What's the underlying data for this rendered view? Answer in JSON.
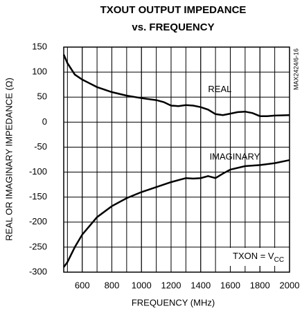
{
  "chart_data": {
    "type": "line",
    "title": [
      "TXOUT OUTPUT IMPEDANCE",
      "vs. FREQUENCY"
    ],
    "xlabel": "FREQUENCY (MHz)",
    "ylabel": "REAL OR IMAGINARY IMPEDANCE (Ω)",
    "side_note": "MAX2424/6-16",
    "condition": {
      "text": "TXON = V",
      "subscript": "CC"
    },
    "xlim": [
      475,
      2000
    ],
    "ylim": [
      -300,
      150
    ],
    "xticks": [
      600,
      800,
      1000,
      1200,
      1400,
      1600,
      1800,
      2000
    ],
    "xgrid": [
      500,
      600,
      700,
      800,
      900,
      1000,
      1100,
      1200,
      1300,
      1400,
      1500,
      1600,
      1700,
      1800,
      1900
    ],
    "yticks": [
      -300,
      -250,
      -200,
      -150,
      -100,
      -50,
      0,
      50,
      100,
      150
    ],
    "grid": true,
    "series": [
      {
        "name": "REAL",
        "color": "#000000",
        "label_at": [
          1450,
          65
        ],
        "x": [
          475,
          500,
          550,
          600,
          700,
          800,
          900,
          1000,
          1100,
          1150,
          1200,
          1250,
          1300,
          1350,
          1400,
          1450,
          1500,
          1550,
          1600,
          1650,
          1700,
          1750,
          1800,
          1850,
          1900,
          2000
        ],
        "values": [
          135,
          118,
          95,
          85,
          70,
          60,
          53,
          48,
          44,
          40,
          33,
          32,
          34,
          33,
          30,
          25,
          16,
          14,
          17,
          20,
          21,
          18,
          12,
          12,
          13,
          14
        ]
      },
      {
        "name": "IMAGINARY",
        "color": "#000000",
        "label_at": [
          1460,
          -70
        ],
        "x": [
          475,
          500,
          550,
          600,
          700,
          800,
          900,
          1000,
          1100,
          1200,
          1300,
          1350,
          1400,
          1450,
          1500,
          1550,
          1600,
          1700,
          1800,
          1900,
          2000
        ],
        "values": [
          -290,
          -280,
          -250,
          -225,
          -190,
          -168,
          -152,
          -140,
          -130,
          -120,
          -112,
          -113,
          -112,
          -108,
          -112,
          -103,
          -95,
          -88,
          -86,
          -82,
          -76
        ]
      }
    ]
  }
}
